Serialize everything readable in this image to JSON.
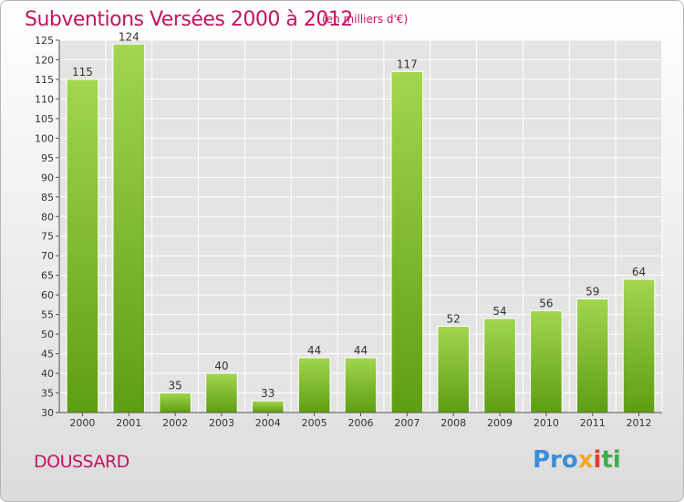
{
  "page": {
    "commune": "DOUSSARD",
    "brand": {
      "p1": "Pro",
      "p2": "x",
      "p3": "i",
      "p4": "ti"
    }
  },
  "chart_data": {
    "type": "bar",
    "title": "Subventions Versées 2000 à 2012",
    "unit_label": "(en milliers d'€)",
    "xlabel": "",
    "ylabel": "",
    "categories": [
      "2000",
      "2001",
      "2002",
      "2003",
      "2004",
      "2005",
      "2006",
      "2007",
      "2008",
      "2009",
      "2010",
      "2011",
      "2012"
    ],
    "values": [
      115,
      124,
      35,
      40,
      33,
      44,
      44,
      117,
      52,
      54,
      56,
      59,
      64
    ],
    "ylim": [
      30,
      125
    ],
    "ytick_step": 5,
    "grid": true,
    "colors": {
      "bar_top": "#a2d64e",
      "bar_bottom": "#5e9e12",
      "grid": "#ffffff",
      "plot_bg": "#e4e4e4",
      "title": "#c0155f"
    }
  }
}
